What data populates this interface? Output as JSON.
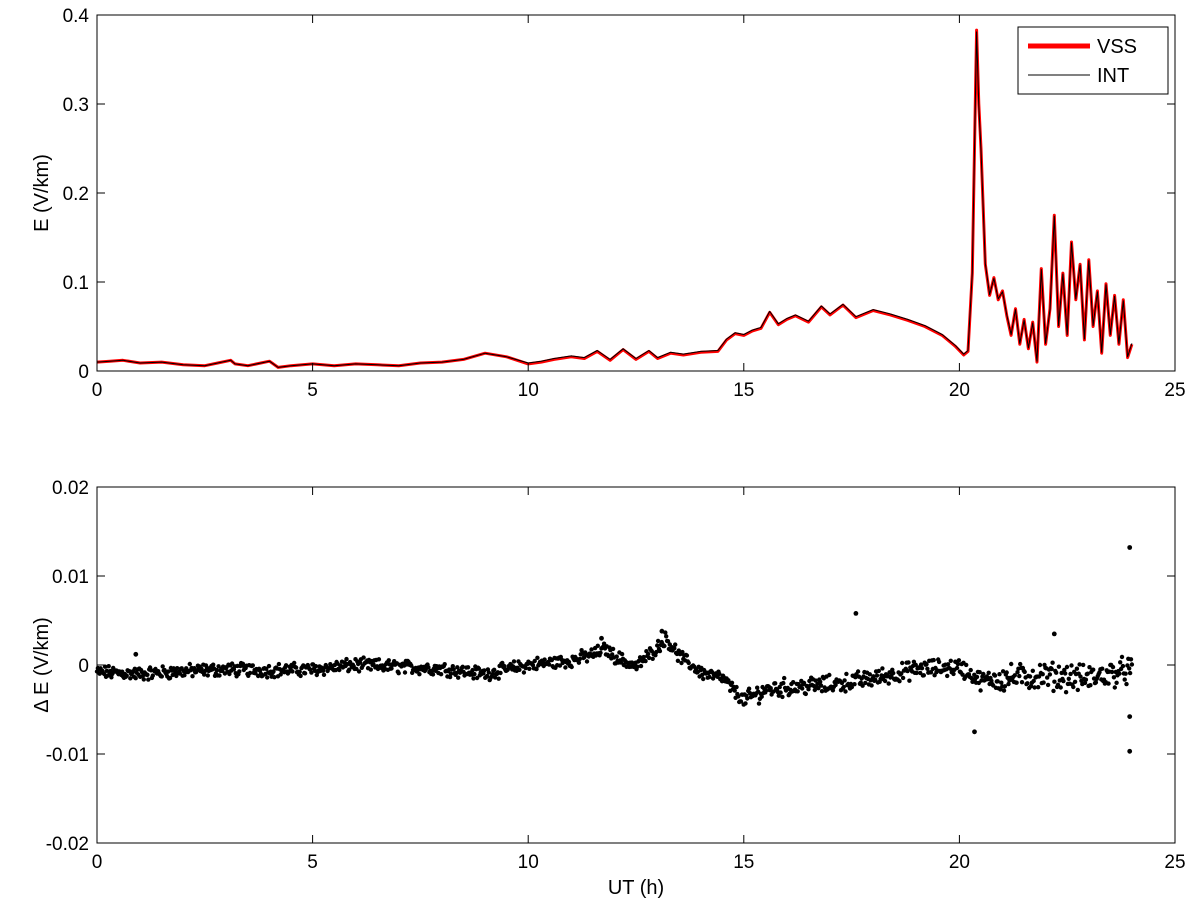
{
  "chart_data": [
    {
      "type": "line",
      "title": "",
      "xlabel": "",
      "ylabel": "E  (V/km)",
      "xlim": [
        0,
        25
      ],
      "ylim": [
        0,
        0.4
      ],
      "x_ticks": [
        "0",
        "5",
        "10",
        "15",
        "20",
        "25"
      ],
      "y_ticks": [
        "0",
        "0.1",
        "0.2",
        "0.3",
        "0.4"
      ],
      "legend_position": "top-right",
      "series": [
        {
          "name": "VSS",
          "color": "#ff0000",
          "x": [
            0,
            0.3,
            0.6,
            1.0,
            1.5,
            2.0,
            2.5,
            2.8,
            3.1,
            3.2,
            3.5,
            4.0,
            4.2,
            4.5,
            5.0,
            5.5,
            6.0,
            6.5,
            7.0,
            7.5,
            8.0,
            8.5,
            9.0,
            9.5,
            10.0,
            10.3,
            10.6,
            11.0,
            11.3,
            11.6,
            11.9,
            12.2,
            12.5,
            12.8,
            13.0,
            13.3,
            13.6,
            14.0,
            14.4,
            14.6,
            14.8,
            15.0,
            15.2,
            15.4,
            15.6,
            15.8,
            16.0,
            16.2,
            16.5,
            16.8,
            17.0,
            17.3,
            17.6,
            18.0,
            18.4,
            18.8,
            19.2,
            19.6,
            19.9,
            20.1,
            20.2,
            20.3,
            20.4,
            20.45,
            20.5,
            20.6,
            20.7,
            20.8,
            20.9,
            21.0,
            21.1,
            21.2,
            21.3,
            21.4,
            21.5,
            21.6,
            21.7,
            21.8,
            21.9,
            22.0,
            22.1,
            22.2,
            22.3,
            22.4,
            22.5,
            22.6,
            22.7,
            22.8,
            22.9,
            23.0,
            23.1,
            23.2,
            23.3,
            23.4,
            23.5,
            23.6,
            23.7,
            23.8,
            23.9,
            24.0
          ],
          "values": [
            0.01,
            0.011,
            0.012,
            0.009,
            0.01,
            0.007,
            0.006,
            0.009,
            0.012,
            0.008,
            0.006,
            0.011,
            0.004,
            0.006,
            0.008,
            0.006,
            0.008,
            0.007,
            0.006,
            0.009,
            0.01,
            0.013,
            0.02,
            0.016,
            0.008,
            0.01,
            0.013,
            0.016,
            0.014,
            0.022,
            0.012,
            0.024,
            0.013,
            0.022,
            0.014,
            0.02,
            0.018,
            0.021,
            0.022,
            0.035,
            0.042,
            0.04,
            0.045,
            0.048,
            0.066,
            0.052,
            0.058,
            0.062,
            0.055,
            0.072,
            0.063,
            0.074,
            0.06,
            0.068,
            0.063,
            0.057,
            0.05,
            0.04,
            0.028,
            0.018,
            0.022,
            0.11,
            0.383,
            0.3,
            0.25,
            0.12,
            0.085,
            0.105,
            0.08,
            0.09,
            0.062,
            0.04,
            0.07,
            0.03,
            0.058,
            0.025,
            0.055,
            0.01,
            0.115,
            0.03,
            0.07,
            0.175,
            0.05,
            0.11,
            0.04,
            0.145,
            0.08,
            0.12,
            0.035,
            0.125,
            0.05,
            0.09,
            0.02,
            0.098,
            0.04,
            0.085,
            0.03,
            0.08,
            0.015,
            0.03
          ]
        },
        {
          "name": "INT",
          "color": "#000000",
          "x": [
            0,
            0.3,
            0.6,
            1.0,
            1.5,
            2.0,
            2.5,
            2.8,
            3.1,
            3.2,
            3.5,
            4.0,
            4.2,
            4.5,
            5.0,
            5.5,
            6.0,
            6.5,
            7.0,
            7.5,
            8.0,
            8.5,
            9.0,
            9.5,
            10.0,
            10.3,
            10.6,
            11.0,
            11.3,
            11.6,
            11.9,
            12.2,
            12.5,
            12.8,
            13.0,
            13.3,
            13.6,
            14.0,
            14.4,
            14.6,
            14.8,
            15.0,
            15.2,
            15.4,
            15.6,
            15.8,
            16.0,
            16.2,
            16.5,
            16.8,
            17.0,
            17.3,
            17.6,
            18.0,
            18.4,
            18.8,
            19.2,
            19.6,
            19.9,
            20.1,
            20.2,
            20.3,
            20.4,
            20.45,
            20.5,
            20.6,
            20.7,
            20.8,
            20.9,
            21.0,
            21.1,
            21.2,
            21.3,
            21.4,
            21.5,
            21.6,
            21.7,
            21.8,
            21.9,
            22.0,
            22.1,
            22.2,
            22.3,
            22.4,
            22.5,
            22.6,
            22.7,
            22.8,
            22.9,
            23.0,
            23.1,
            23.2,
            23.3,
            23.4,
            23.5,
            23.6,
            23.7,
            23.8,
            23.9,
            24.0
          ],
          "values": [
            0.01,
            0.011,
            0.012,
            0.009,
            0.01,
            0.007,
            0.006,
            0.009,
            0.012,
            0.008,
            0.006,
            0.011,
            0.004,
            0.006,
            0.008,
            0.006,
            0.008,
            0.007,
            0.006,
            0.009,
            0.01,
            0.013,
            0.02,
            0.016,
            0.009,
            0.011,
            0.014,
            0.017,
            0.015,
            0.023,
            0.013,
            0.025,
            0.014,
            0.023,
            0.015,
            0.021,
            0.019,
            0.022,
            0.023,
            0.036,
            0.043,
            0.041,
            0.046,
            0.049,
            0.067,
            0.053,
            0.059,
            0.063,
            0.056,
            0.073,
            0.064,
            0.075,
            0.061,
            0.069,
            0.064,
            0.058,
            0.051,
            0.041,
            0.029,
            0.019,
            0.023,
            0.111,
            0.381,
            0.298,
            0.248,
            0.121,
            0.086,
            0.104,
            0.081,
            0.089,
            0.063,
            0.041,
            0.069,
            0.031,
            0.057,
            0.026,
            0.054,
            0.011,
            0.114,
            0.031,
            0.069,
            0.174,
            0.051,
            0.109,
            0.041,
            0.144,
            0.081,
            0.119,
            0.036,
            0.124,
            0.051,
            0.089,
            0.021,
            0.097,
            0.041,
            0.084,
            0.031,
            0.079,
            0.016,
            0.031
          ]
        }
      ]
    },
    {
      "type": "scatter",
      "title": "",
      "xlabel": "UT (h)",
      "ylabel": "Δ E  (V/km)",
      "xlim": [
        0,
        25
      ],
      "ylim": [
        -0.02,
        0.02
      ],
      "x_ticks": [
        "0",
        "5",
        "10",
        "15",
        "20",
        "25"
      ],
      "y_ticks": [
        "-0.02",
        "-0.01",
        "0",
        "0.01",
        "0.02"
      ],
      "series": [
        {
          "color": "#000000",
          "trend_x": [
            0,
            1,
            2,
            3,
            4,
            5,
            6,
            7,
            8,
            9,
            10,
            11,
            11.5,
            11.8,
            12,
            12.5,
            13,
            13.2,
            13.5,
            14,
            14.5,
            15,
            15.5,
            16,
            17,
            18,
            19,
            20,
            20.5,
            21,
            22,
            23,
            24
          ],
          "trend_y": [
            -0.0008,
            -0.001,
            -0.0007,
            -0.0005,
            -0.0006,
            -0.0005,
            0.0,
            -0.0002,
            -0.0004,
            -0.001,
            0.0,
            0.0005,
            0.0012,
            0.0018,
            0.001,
            -0.0002,
            0.002,
            0.003,
            0.001,
            -0.0008,
            -0.0015,
            -0.004,
            -0.0028,
            -0.0025,
            -0.0022,
            -0.0015,
            -0.0005,
            -0.0002,
            -0.0018,
            -0.0015,
            -0.0012,
            -0.0015,
            -0.0005
          ],
          "outliers": [
            {
              "x": 0.9,
              "y": 0.0012
            },
            {
              "x": 11.7,
              "y": 0.003
            },
            {
              "x": 13.1,
              "y": 0.0038
            },
            {
              "x": 17.6,
              "y": 0.0058
            },
            {
              "x": 20.35,
              "y": -0.0075
            },
            {
              "x": 22.2,
              "y": 0.0035
            },
            {
              "x": 23.95,
              "y": 0.0132
            },
            {
              "x": 23.95,
              "y": -0.0058
            },
            {
              "x": 23.95,
              "y": -0.0097
            }
          ]
        }
      ]
    }
  ]
}
